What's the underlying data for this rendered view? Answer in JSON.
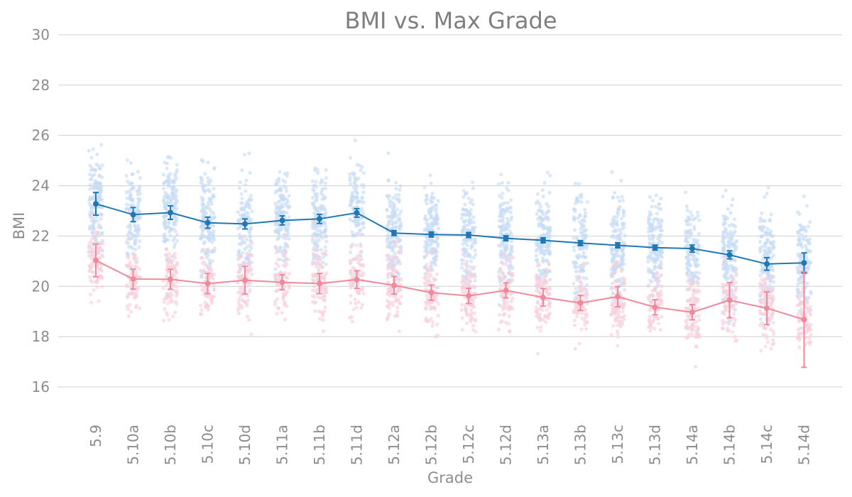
{
  "chart_data": {
    "type": "line",
    "title": "BMI vs. Max Grade",
    "xlabel": "Grade",
    "ylabel": "BMI",
    "categories": [
      "5.9",
      "5.10a",
      "5.10b",
      "5.10c",
      "5.10d",
      "5.11a",
      "5.11b",
      "5.11d",
      "5.12a",
      "5.12b",
      "5.12c",
      "5.12d",
      "5.13a",
      "5.13b",
      "5.13c",
      "5.13d",
      "5.14a",
      "5.14b",
      "5.14c",
      "5.14d"
    ],
    "ylim": [
      15,
      30.3
    ],
    "yticks": [
      16,
      18,
      20,
      22,
      24,
      26,
      28,
      30
    ],
    "grid": "horizontal",
    "series": [
      {
        "color": "#1f77b4",
        "scatter_color": "#c6dbf5",
        "values": [
          23.28,
          22.85,
          22.93,
          22.53,
          22.48,
          22.62,
          22.68,
          22.92,
          22.12,
          22.06,
          22.04,
          21.91,
          21.83,
          21.72,
          21.63,
          21.54,
          21.5,
          21.25,
          20.89,
          20.93
        ],
        "error": [
          0.45,
          0.28,
          0.27,
          0.22,
          0.2,
          0.18,
          0.18,
          0.17,
          0.1,
          0.1,
          0.1,
          0.1,
          0.1,
          0.1,
          0.1,
          0.1,
          0.14,
          0.16,
          0.25,
          0.4
        ]
      },
      {
        "color": "#f08a9a",
        "scatter_color": "#f7cfdc",
        "values": [
          21.03,
          20.29,
          20.28,
          20.11,
          20.24,
          20.16,
          20.11,
          20.27,
          20.04,
          19.75,
          19.62,
          19.84,
          19.56,
          19.34,
          19.59,
          19.17,
          18.97,
          19.45,
          19.13,
          18.68
        ],
        "error": [
          0.65,
          0.4,
          0.4,
          0.4,
          0.55,
          0.3,
          0.4,
          0.35,
          0.35,
          0.3,
          0.3,
          0.3,
          0.35,
          0.3,
          0.4,
          0.3,
          0.3,
          0.7,
          0.65,
          1.9
        ]
      }
    ]
  }
}
